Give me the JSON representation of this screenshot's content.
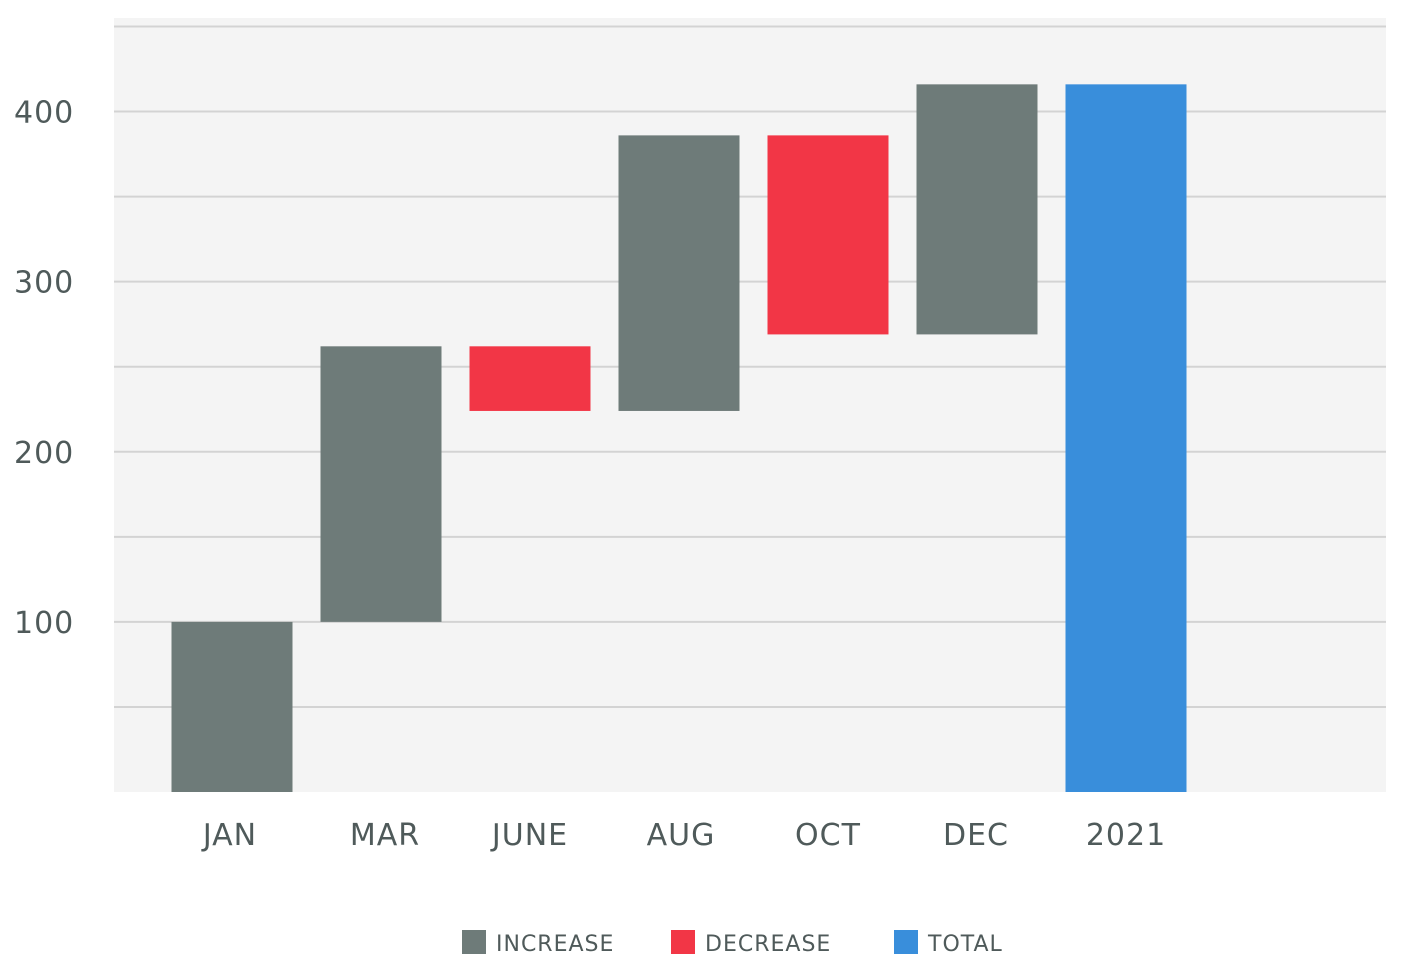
{
  "chart_data": {
    "type": "bar",
    "subtype": "waterfall",
    "categories": [
      "JAN",
      "MAR",
      "JUNE",
      "AUG",
      "OCT",
      "DEC",
      "2021"
    ],
    "bars": [
      {
        "category": "JAN",
        "start": 0,
        "end": 100,
        "kind": "increase"
      },
      {
        "category": "MAR",
        "start": 100,
        "end": 262,
        "kind": "increase"
      },
      {
        "category": "JUNE",
        "start": 262,
        "end": 224,
        "kind": "decrease"
      },
      {
        "category": "AUG",
        "start": 224,
        "end": 386,
        "kind": "increase"
      },
      {
        "category": "OCT",
        "start": 386,
        "end": 269,
        "kind": "decrease"
      },
      {
        "category": "DEC",
        "start": 269,
        "end": 416,
        "kind": "increase"
      },
      {
        "category": "2021",
        "start": 0,
        "end": 416,
        "kind": "total"
      }
    ],
    "ylim": [
      0,
      455
    ],
    "yticks": [
      100,
      200,
      300,
      400
    ],
    "grid": true,
    "legend": {
      "position": "bottom",
      "entries": [
        {
          "kind": "increase",
          "label": "INCREASE"
        },
        {
          "kind": "decrease",
          "label": "DECREASE"
        },
        {
          "kind": "total",
          "label": "TOTAL"
        }
      ]
    },
    "colors": {
      "increase": "#6e7b79",
      "decrease": "#f23646",
      "total": "#398edb",
      "plot_background": "#f4f4f4",
      "grid": "#d3d3d3"
    },
    "title": "",
    "xlabel": "",
    "ylabel": ""
  }
}
